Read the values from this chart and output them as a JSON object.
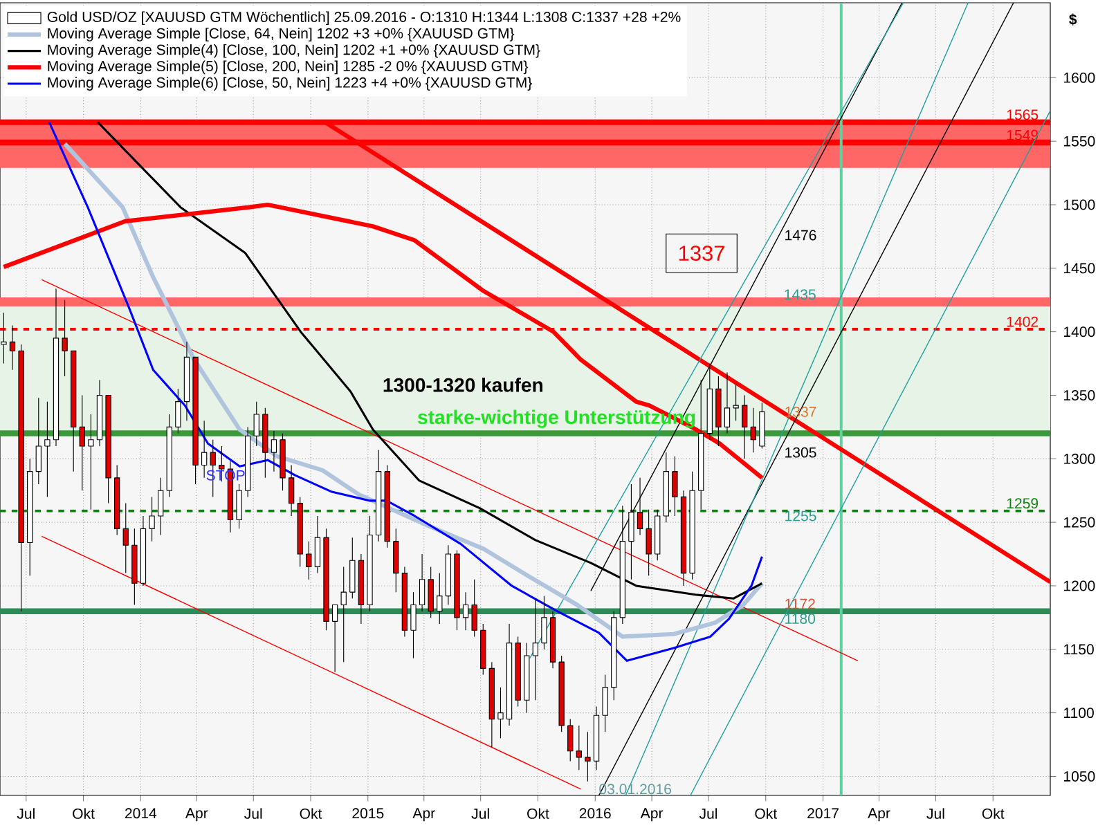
{
  "chart_data": {
    "type": "candlestick",
    "ylabel": "$",
    "xlim": [
      "2013-05-20",
      "2018-01-01"
    ],
    "ylim": [
      1035,
      1659
    ],
    "xticks": [
      {
        "value": "2013-07-01",
        "label": "Jul"
      },
      {
        "value": "2013-10-01",
        "label": "Okt"
      },
      {
        "value": "2014-01-01",
        "label": "2014"
      },
      {
        "value": "2014-04-01",
        "label": "Apr"
      },
      {
        "value": "2014-07-01",
        "label": "Jul"
      },
      {
        "value": "2014-10-01",
        "label": "Okt"
      },
      {
        "value": "2015-01-01",
        "label": "2015"
      },
      {
        "value": "2015-04-01",
        "label": "Apr"
      },
      {
        "value": "2015-07-01",
        "label": "Jul"
      },
      {
        "value": "2015-10-01",
        "label": "Okt"
      },
      {
        "value": "2016-01-01",
        "label": "2016"
      },
      {
        "value": "2016-04-01",
        "label": "Apr"
      },
      {
        "value": "2016-07-01",
        "label": "Jul"
      },
      {
        "value": "2016-10-01",
        "label": "Okt"
      },
      {
        "value": "2017-01-01",
        "label": "2017"
      },
      {
        "value": "2017-04-01",
        "label": "Apr"
      },
      {
        "value": "2017-07-01",
        "label": "Jul"
      },
      {
        "value": "2017-10-01",
        "label": "Okt"
      }
    ],
    "yticks": [
      1050,
      1100,
      1150,
      1200,
      1250,
      1300,
      1350,
      1400,
      1450,
      1500,
      1550,
      1600
    ],
    "grid": true,
    "legend": "top left",
    "series": [
      {
        "name": "Gold USD/OZ [XAUUSD GTM  Wöchentlich] 25.09.2016 - O:1310 H:1344 L:1308 C:1337 +28 +2%",
        "colors": [
          "#ffffff",
          "#e00000",
          "#e00000",
          "#ffffff",
          "#ffffff",
          "#ffffff",
          "#ffffff",
          "#e00000",
          "#e00000",
          "#e00000",
          "#ffffff",
          "#ffffff",
          "#e00000",
          "#e00000",
          "#e00000",
          "#e00000",
          "#ffffff",
          "#ffffff",
          "#ffffff",
          "#ffffff",
          "#ffffff",
          "#ffffff",
          "#e00000",
          "#ffffff",
          "#e00000",
          "#e00000",
          "#e00000",
          "#ffffff",
          "#ffffff",
          "#ffffff",
          "#e00000",
          "#ffffff",
          "#e00000",
          "#e00000",
          "#e00000",
          "#e00000",
          "#ffffff",
          "#e00000",
          "#ffffff",
          "#ffffff",
          "#ffffff",
          "#e00000",
          "#ffffff",
          "#ffffff",
          "#e00000",
          "#e00000",
          "#e00000",
          "#ffffff",
          "#ffffff",
          "#e00000",
          "#ffffff",
          "#ffffff",
          "#e00000",
          "#ffffff",
          "#e00000",
          "#e00000",
          "#e00000",
          "#ffffff",
          "#ffffff",
          "#e00000",
          "#ffffff",
          "#ffffff",
          "#ffffff",
          "#e00000",
          "#e00000",
          "#e00000",
          "#e00000",
          "#e00000",
          "#ffffff",
          "#ffffff",
          "#ffffff",
          "#ffffff",
          "#ffffff",
          "#e00000",
          "#e00000",
          "#ffffff",
          "#ffffff",
          "#e00000",
          "#e00000",
          "#ffffff",
          "#ffffff",
          "#ffffff",
          "#e00000",
          "#ffffff",
          "#ffffff",
          "#e00000",
          "#e00000",
          "#ffffff"
        ],
        "x": [
          "2013-05-26",
          "2013-06-09",
          "2013-06-23",
          "2013-07-07",
          "2013-07-21",
          "2013-08-04",
          "2013-08-18",
          "2013-09-01",
          "2013-09-15",
          "2013-09-29",
          "2013-10-13",
          "2013-10-27",
          "2013-11-10",
          "2013-11-24",
          "2013-12-08",
          "2013-12-22",
          "2014-01-05",
          "2014-01-19",
          "2014-02-02",
          "2014-02-16",
          "2014-03-02",
          "2014-03-16",
          "2014-03-30",
          "2014-04-13",
          "2014-04-27",
          "2014-05-11",
          "2014-05-25",
          "2014-06-08",
          "2014-06-22",
          "2014-07-06",
          "2014-07-20",
          "2014-08-03",
          "2014-08-17",
          "2014-08-31",
          "2014-09-14",
          "2014-09-28",
          "2014-10-12",
          "2014-10-26",
          "2014-11-09",
          "2014-11-23",
          "2014-12-07",
          "2014-12-21",
          "2015-01-04",
          "2015-01-18",
          "2015-02-01",
          "2015-02-15",
          "2015-03-01",
          "2015-03-15",
          "2015-03-29",
          "2015-04-12",
          "2015-04-26",
          "2015-05-10",
          "2015-05-24",
          "2015-06-07",
          "2015-06-21",
          "2015-07-05",
          "2015-07-19",
          "2015-08-02",
          "2015-08-16",
          "2015-08-30",
          "2015-09-13",
          "2015-09-27",
          "2015-10-11",
          "2015-10-25",
          "2015-11-08",
          "2015-11-22",
          "2015-12-06",
          "2015-12-20",
          "2016-01-03",
          "2016-01-17",
          "2016-01-31",
          "2016-02-14",
          "2016-02-28",
          "2016-03-13",
          "2016-03-27",
          "2016-04-10",
          "2016-04-24",
          "2016-05-08",
          "2016-05-22",
          "2016-06-05",
          "2016-06-19",
          "2016-07-03",
          "2016-07-17",
          "2016-07-31",
          "2016-08-14",
          "2016-08-28",
          "2016-09-11",
          "2016-09-25"
        ],
        "ohlc": [
          [
            1390,
            1415,
            1375,
            1392
          ],
          [
            1392,
            1405,
            1370,
            1385
          ],
          [
            1385,
            1390,
            1180,
            1234
          ],
          [
            1234,
            1300,
            1208,
            1290
          ],
          [
            1290,
            1348,
            1280,
            1310
          ],
          [
            1310,
            1345,
            1270,
            1315
          ],
          [
            1315,
            1434,
            1310,
            1395
          ],
          [
            1395,
            1425,
            1365,
            1385
          ],
          [
            1385,
            1385,
            1290,
            1325
          ],
          [
            1325,
            1350,
            1275,
            1310
          ],
          [
            1310,
            1335,
            1260,
            1315
          ],
          [
            1315,
            1362,
            1310,
            1350
          ],
          [
            1350,
            1350,
            1265,
            1285
          ],
          [
            1285,
            1295,
            1240,
            1245
          ],
          [
            1245,
            1265,
            1210,
            1232
          ],
          [
            1232,
            1245,
            1185,
            1202
          ],
          [
            1202,
            1255,
            1200,
            1245
          ],
          [
            1245,
            1270,
            1235,
            1255
          ],
          [
            1255,
            1285,
            1240,
            1275
          ],
          [
            1275,
            1335,
            1270,
            1325
          ],
          [
            1325,
            1355,
            1320,
            1345
          ],
          [
            1345,
            1392,
            1330,
            1380
          ],
          [
            1380,
            1380,
            1280,
            1295
          ],
          [
            1295,
            1330,
            1285,
            1305
          ],
          [
            1305,
            1315,
            1270,
            1295
          ],
          [
            1295,
            1310,
            1282,
            1292
          ],
          [
            1292,
            1298,
            1242,
            1252
          ],
          [
            1252,
            1280,
            1245,
            1275
          ],
          [
            1275,
            1325,
            1270,
            1318
          ],
          [
            1318,
            1345,
            1310,
            1335
          ],
          [
            1335,
            1340,
            1285,
            1305
          ],
          [
            1305,
            1322,
            1290,
            1315
          ],
          [
            1315,
            1320,
            1275,
            1285
          ],
          [
            1285,
            1295,
            1255,
            1265
          ],
          [
            1265,
            1270,
            1215,
            1225
          ],
          [
            1225,
            1235,
            1205,
            1215
          ],
          [
            1215,
            1255,
            1210,
            1238
          ],
          [
            1238,
            1245,
            1165,
            1172
          ],
          [
            1172,
            1185,
            1132,
            1185
          ],
          [
            1185,
            1215,
            1140,
            1195
          ],
          [
            1195,
            1238,
            1190,
            1220
          ],
          [
            1220,
            1225,
            1170,
            1185
          ],
          [
            1185,
            1255,
            1180,
            1240
          ],
          [
            1240,
            1307,
            1235,
            1290
          ],
          [
            1290,
            1295,
            1230,
            1235
          ],
          [
            1235,
            1245,
            1195,
            1210
          ],
          [
            1210,
            1215,
            1160,
            1165
          ],
          [
            1165,
            1195,
            1143,
            1185
          ],
          [
            1185,
            1225,
            1180,
            1205
          ],
          [
            1205,
            1215,
            1175,
            1180
          ],
          [
            1180,
            1210,
            1170,
            1192
          ],
          [
            1192,
            1232,
            1185,
            1225
          ],
          [
            1225,
            1228,
            1165,
            1175
          ],
          [
            1175,
            1195,
            1165,
            1185
          ],
          [
            1185,
            1205,
            1160,
            1165
          ],
          [
            1165,
            1170,
            1130,
            1135
          ],
          [
            1135,
            1140,
            1073,
            1095
          ],
          [
            1095,
            1120,
            1080,
            1100
          ],
          [
            1095,
            1170,
            1090,
            1155
          ],
          [
            1155,
            1160,
            1105,
            1110
          ],
          [
            1110,
            1155,
            1100,
            1145
          ],
          [
            1145,
            1190,
            1110,
            1155
          ],
          [
            1155,
            1192,
            1150,
            1175
          ],
          [
            1175,
            1180,
            1135,
            1140
          ],
          [
            1140,
            1145,
            1085,
            1090
          ],
          [
            1090,
            1095,
            1062,
            1070
          ],
          [
            1070,
            1090,
            1055,
            1065
          ],
          [
            1065,
            1085,
            1046,
            1062
          ],
          [
            1062,
            1105,
            1055,
            1098
          ],
          [
            1098,
            1130,
            1085,
            1120
          ],
          [
            1120,
            1180,
            1110,
            1175
          ],
          [
            1175,
            1263,
            1170,
            1235
          ],
          [
            1235,
            1280,
            1205,
            1258
          ],
          [
            1258,
            1285,
            1240,
            1245
          ],
          [
            1245,
            1260,
            1208,
            1225
          ],
          [
            1225,
            1260,
            1220,
            1255
          ],
          [
            1255,
            1305,
            1250,
            1290
          ],
          [
            1290,
            1302,
            1255,
            1270
          ],
          [
            1270,
            1275,
            1200,
            1210
          ],
          [
            1210,
            1290,
            1205,
            1275
          ],
          [
            1275,
            1362,
            1260,
            1320
          ],
          [
            1320,
            1375,
            1315,
            1355
          ],
          [
            1355,
            1365,
            1310,
            1325
          ],
          [
            1325,
            1368,
            1320,
            1340
          ],
          [
            1340,
            1360,
            1330,
            1342
          ],
          [
            1342,
            1350,
            1300,
            1325
          ],
          [
            1325,
            1340,
            1305,
            1315
          ],
          [
            1310,
            1344,
            1308,
            1337
          ]
        ]
      },
      {
        "type": "line",
        "name": "Moving Average Simple [Close, 64, Nein] 1202 +3 +0% {XAUUSD GTM}",
        "color": "#b0c4de",
        "x": [
          "2013-09-01",
          "2013-12-03",
          "2014-01-21",
          "2014-03-28",
          "2014-06-09",
          "2014-08-08",
          "2014-10-20",
          "2014-12-17",
          "2015-04-09",
          "2015-07-06",
          "2015-09-18",
          "2015-12-03",
          "2016-02-14",
          "2016-05-06",
          "2016-07-12",
          "2016-08-26",
          "2016-09-25"
        ],
        "values": [
          1548,
          1498,
          1443,
          1378,
          1323,
          1302,
          1291,
          1272,
          1247,
          1229,
          1207,
          1185,
          1160,
          1162,
          1171,
          1185,
          1202
        ]
      },
      {
        "type": "line",
        "name": "Moving Average Simple(4) [Close, 100, Nein] 1202 +1 +0% {XAUUSD GTM}",
        "color": "#000000",
        "x": [
          "2013-10-24",
          "2014-03-06",
          "2014-06-18",
          "2014-09-15",
          "2014-12-04",
          "2015-01-09",
          "2015-03-24",
          "2015-06-30",
          "2015-09-27",
          "2015-12-25",
          "2016-03-07",
          "2016-06-10",
          "2016-08-10",
          "2016-09-25"
        ],
        "values": [
          1565,
          1498,
          1462,
          1400,
          1353,
          1323,
          1283,
          1261,
          1236,
          1218,
          1200,
          1193,
          1190,
          1202
        ]
      },
      {
        "type": "line",
        "name": "Moving Average Simple(5) [Close, 200, Nein] 1285 -2 0% {XAUUSD GTM}",
        "color": "#ff0000",
        "x": [
          "2013-05-26",
          "2013-12-07",
          "2014-06-24",
          "2014-07-24",
          "2015-01-09",
          "2015-03-17",
          "2015-07-06",
          "2015-10-26",
          "2015-12-09",
          "2016-03-07",
          "2016-03-28",
          "2016-06-04",
          "2016-07-19",
          "2016-09-25"
        ],
        "values": [
          1451,
          1487,
          1498,
          1500,
          1483,
          1472,
          1432,
          1400,
          1378,
          1345,
          1342,
          1325,
          1312,
          1285
        ]
      },
      {
        "type": "line",
        "name": "Moving Average Simple(6) [Close, 50, Nein] 1223 +4 +0% {XAUUSD GTM}",
        "color": "#0000ff",
        "x": [
          "2013-08-07",
          "2013-10-08",
          "2013-12-14",
          "2014-01-21",
          "2014-03-13",
          "2014-04-19",
          "2014-06-09",
          "2014-07-24",
          "2014-09-06",
          "2014-11-04",
          "2015-01-04",
          "2015-01-31",
          "2015-03-17",
          "2015-05-30",
          "2015-08-20",
          "2015-11-01",
          "2016-01-07",
          "2016-02-21",
          "2016-05-06",
          "2016-07-04",
          "2016-08-03",
          "2016-09-08",
          "2016-09-25"
        ],
        "values": [
          1565,
          1498,
          1418,
          1370,
          1342,
          1312,
          1294,
          1299,
          1287,
          1274,
          1267,
          1267,
          1255,
          1233,
          1200,
          1180,
          1163,
          1141,
          1151,
          1160,
          1174,
          1200,
          1223
        ]
      },
      {
        "type": "line",
        "color": "#ff0000",
        "x": [
          "2014-10-24",
          "2018-01-01"
        ],
        "values": [
          1565,
          1203
        ]
      },
      {
        "type": "line",
        "color": "#ff0000",
        "x": [
          "2013-07-26",
          "2017-02-26"
        ],
        "values": [
          1441,
          1141
        ]
      },
      {
        "type": "line",
        "color": "#ff0000",
        "x": [
          "2013-07-26",
          "2015-12-09"
        ],
        "values": [
          1239,
          1040
        ]
      },
      {
        "type": "line",
        "color": "#000000",
        "x": [
          "2015-12-25",
          "2017-05-08"
        ],
        "values": [
          1196,
          1659
        ]
      },
      {
        "type": "line",
        "color": "#000000",
        "x": [
          "2016-01-07",
          "2017-11-03"
        ],
        "values": [
          1035,
          1659
        ]
      },
      {
        "type": "line",
        "color": "#20a0a0",
        "x": [
          "2015-09-18",
          "2017-05-10"
        ],
        "values": [
          1143,
          1659
        ]
      },
      {
        "type": "line",
        "color": "#20a0a0",
        "x": [
          "2016-02-19",
          "2017-08-22"
        ],
        "values": [
          1035,
          1659
        ]
      },
      {
        "type": "line",
        "color": "#20a0a0",
        "x": [
          "2016-06-02",
          "2018-01-01"
        ],
        "values": [
          1035,
          1574
        ]
      }
    ],
    "bands": [
      {
        "axis": "y",
        "from": 1320,
        "to": 1420,
        "color": "#e6f3e6"
      },
      {
        "axis": "y",
        "from": 1529,
        "to": 1566,
        "color": "#ff6666"
      },
      {
        "axis": "y",
        "from": 1420,
        "to": 1427,
        "color": "#ff6666"
      }
    ],
    "ref_lines": [
      {
        "axis": "y",
        "value": 1565,
        "label": "1565",
        "color": "#ff0000"
      },
      {
        "axis": "y",
        "value": 1549,
        "label": "1549",
        "color": "#ff0000"
      },
      {
        "axis": "y",
        "value": 1402,
        "label": "1402",
        "color": "#ff0000",
        "line_style": "dashed"
      },
      {
        "axis": "y",
        "value": 1320,
        "color": "#3a9a3a"
      },
      {
        "axis": "y",
        "value": 1259,
        "label": "1259",
        "color": "#108010",
        "line_style": "dashed"
      },
      {
        "axis": "y",
        "value": 1180,
        "color": "#2e8b57"
      },
      {
        "axis": "x",
        "value": "2017-01-30",
        "color": "#60d0a0"
      }
    ],
    "annotations": [
      "1300-1320 kaufen",
      "starke-wichtige Unterstützung",
      "1337",
      {
        "text": "1476",
        "x": "2016-10-27",
        "y": 1476
      },
      "1435",
      {
        "text": "1337",
        "x": "2016-10-27",
        "y": 1337
      },
      {
        "text": "1305",
        "x": "2016-10-27",
        "y": 1305
      },
      {
        "text": "1255",
        "x": "2016-10-27",
        "y": 1255
      },
      {
        "text": "1172",
        "x": "2016-10-27",
        "y": 1180
      },
      {
        "text": "1180",
        "x": "2016-10-27",
        "y": 1180
      },
      {
        "text": "STOP",
        "x": "2014-04-12",
        "y": 1287
      },
      {
        "text": "03.01.2016",
        "x": "2016-01-03",
        "y": 1040
      }
    ]
  }
}
